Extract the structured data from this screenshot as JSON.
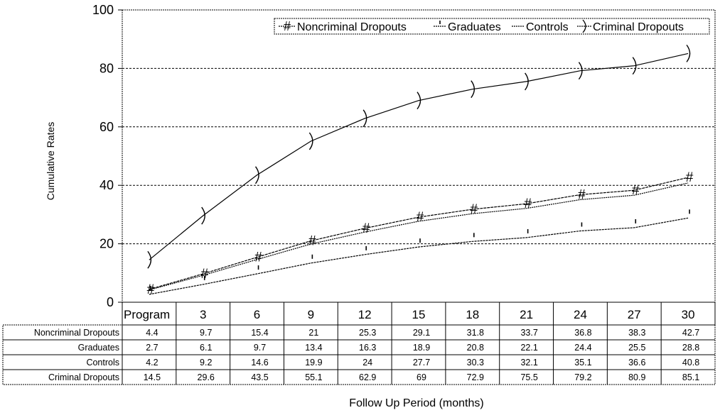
{
  "chart_data": {
    "type": "line",
    "title": "",
    "xlabel": "Follow Up Period (months)",
    "ylabel": "Cumulative Rates",
    "ylim": [
      0,
      100
    ],
    "yticks": [
      0,
      20,
      40,
      60,
      80,
      100
    ],
    "grid": true,
    "legend_position": "top-right",
    "categories": [
      "Program",
      "3",
      "6",
      "9",
      "12",
      "15",
      "18",
      "21",
      "24",
      "27",
      "30"
    ],
    "series": [
      {
        "name": "Noncriminal Dropouts",
        "marker": "#",
        "values": [
          4.4,
          9.7,
          15.4,
          21,
          25.3,
          29.1,
          31.8,
          33.7,
          36.8,
          38.3,
          42.7
        ],
        "labels": [
          "4.4",
          "9.7",
          "15.4",
          "21",
          "25.3",
          "29.1",
          "31.8",
          "33.7",
          "36.8",
          "38.3",
          "42.7"
        ]
      },
      {
        "name": "Graduates",
        "marker": "'",
        "values": [
          2.7,
          6.1,
          9.7,
          13.4,
          16.3,
          18.9,
          20.8,
          22.1,
          24.4,
          25.5,
          28.8
        ],
        "labels": [
          "2.7",
          "6.1",
          "9.7",
          "13.4",
          "16.3",
          "18.9",
          "20.8",
          "22.1",
          "24.4",
          "25.5",
          "28.8"
        ]
      },
      {
        "name": "Controls",
        "marker": "",
        "values": [
          4.2,
          9.2,
          14.6,
          19.9,
          24,
          27.7,
          30.3,
          32.1,
          35.1,
          36.6,
          40.8
        ],
        "labels": [
          "4.2",
          "9.2",
          "14.6",
          "19.9",
          "24",
          "27.7",
          "30.3",
          "32.1",
          "35.1",
          "36.6",
          "40.8"
        ]
      },
      {
        "name": "Criminal Dropouts",
        "marker": ")",
        "values": [
          14.5,
          29.6,
          43.5,
          55.1,
          62.9,
          69,
          72.9,
          75.5,
          79.2,
          80.9,
          85.1
        ],
        "labels": [
          "14.5",
          "29.6",
          "43.5",
          "55.1",
          "62.9",
          "69",
          "72.9",
          "75.5",
          "79.2",
          "80.9",
          "85.1"
        ]
      }
    ]
  }
}
